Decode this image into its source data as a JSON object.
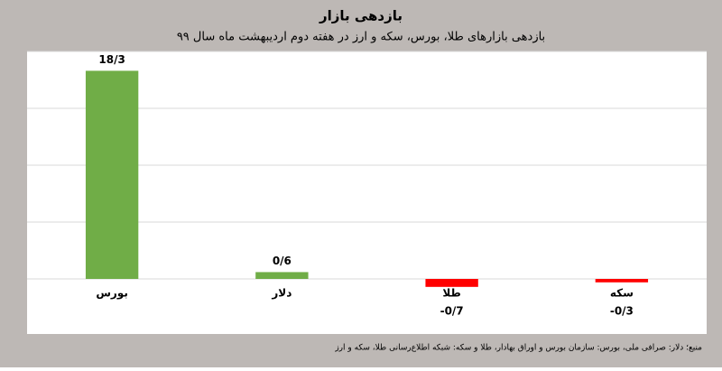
{
  "chart_data": {
    "type": "bar",
    "title": "بازدهی بازار",
    "subtitle": "بازدهی بازارهای طلا، بورس، سکه و ارز در هفته دوم اردیبهشت ماه سال ۹۹",
    "categories": [
      "بورس",
      "دلار",
      "طلا",
      "سکه"
    ],
    "values": [
      18.3,
      0.6,
      -0.7,
      -0.3
    ],
    "value_labels": [
      "18/3",
      "0/6",
      "-0/7",
      "-0/3"
    ],
    "colors": [
      "#70ad47",
      "#70ad47",
      "#ff0000",
      "#ff0000"
    ],
    "ylim": [
      -5,
      20
    ],
    "yticks": [
      0,
      5,
      10,
      15,
      20
    ],
    "tick_labels": false,
    "grid": true,
    "source": "منبع؛ دلار: صرافی ملی، بورس: سازمان بورس و اوراق بهادار، طلا و سکه: شبکه اطلاع‌رسانی طلا، سکه و ارز"
  }
}
